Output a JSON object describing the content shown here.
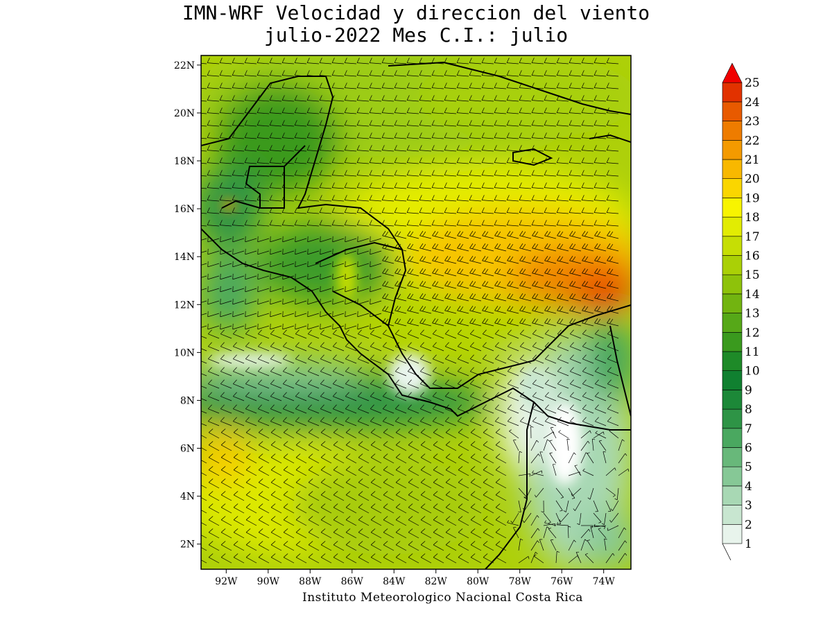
{
  "title": {
    "line1": "IMN-WRF Velocidad y direccion del viento",
    "line2": "julio-2022 Mes C.I.: julio"
  },
  "credit": "Instituto Meteorologico Nacional Costa Rica",
  "map": {
    "lon_range": [
      -93.2,
      -72.7
    ],
    "lat_range": [
      0.95,
      22.4
    ],
    "lat_ticks": [
      "2N",
      "4N",
      "6N",
      "8N",
      "10N",
      "12N",
      "14N",
      "16N",
      "18N",
      "20N",
      "22N"
    ],
    "lat_tick_values": [
      2,
      4,
      6,
      8,
      10,
      12,
      14,
      16,
      18,
      20,
      22
    ],
    "lon_ticks": [
      "92W",
      "90W",
      "88W",
      "86W",
      "84W",
      "82W",
      "80W",
      "78W",
      "76W",
      "74W"
    ],
    "lon_tick_values": [
      -92,
      -90,
      -88,
      -86,
      -84,
      -82,
      -80,
      -78,
      -76,
      -74
    ],
    "variable": "wind speed and direction (barbs)"
  },
  "colorbar": {
    "levels": [
      "1",
      "2",
      "3",
      "4",
      "5",
      "6",
      "7",
      "8",
      "9",
      "10",
      "11",
      "12",
      "13",
      "14",
      "15",
      "16",
      "17",
      "18",
      "19",
      "20",
      "21",
      "22",
      "23",
      "24",
      "25"
    ],
    "colors": [
      "#e8f4ec",
      "#c8e6d0",
      "#a8d8b4",
      "#86c896",
      "#68b87a",
      "#4aa860",
      "#2e9446",
      "#1c8838",
      "#108030",
      "#1e8a28",
      "#3a9a1e",
      "#56a818",
      "#72b410",
      "#8ec20a",
      "#aad006",
      "#c6de04",
      "#e2ec02",
      "#f8f400",
      "#fad600",
      "#f8b800",
      "#f49a00",
      "#ee7c00",
      "#e85a00",
      "#e23200",
      "#dc0a00"
    ],
    "extend_max_color": "#f00000"
  }
}
